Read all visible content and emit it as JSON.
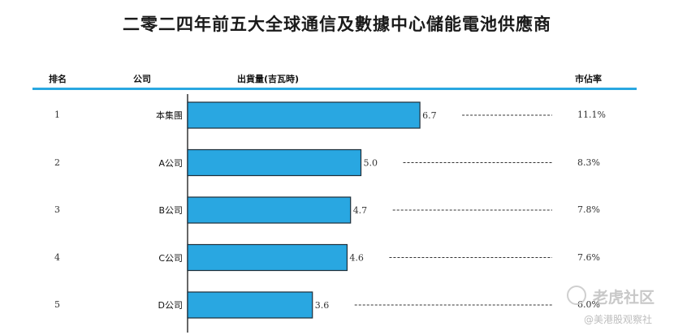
{
  "chart_data": {
    "type": "bar",
    "orientation": "horizontal",
    "title": "二零二四年前五大全球通信及數據中心儲能電池供應商",
    "columns": {
      "rank": "排名",
      "company": "公司",
      "shipment": "出貨量(吉瓦時)",
      "share": "市佔率"
    },
    "rows": [
      {
        "rank": "1",
        "company": "本集團",
        "value": 6.7,
        "value_label": "6.7",
        "share": "11.1%"
      },
      {
        "rank": "2",
        "company": "A公司",
        "value": 5.0,
        "value_label": "5.0",
        "share": "8.3%"
      },
      {
        "rank": "3",
        "company": "B公司",
        "value": 4.7,
        "value_label": "4.7",
        "share": "7.8%"
      },
      {
        "rank": "4",
        "company": "C公司",
        "value": 4.6,
        "value_label": "4.6",
        "share": "7.6%"
      },
      {
        "rank": "5",
        "company": "D公司",
        "value": 3.6,
        "value_label": "3.6",
        "share": "6.0%"
      }
    ],
    "bar_color": "#29a7e1",
    "bar_border": "#1f2f3a",
    "header_rule_color": "#29a7e1",
    "leader_line": "dashed",
    "legend": "none",
    "grid": false
  },
  "watermark": {
    "line1": "老虎社区",
    "line2": "@美港股观察社"
  }
}
